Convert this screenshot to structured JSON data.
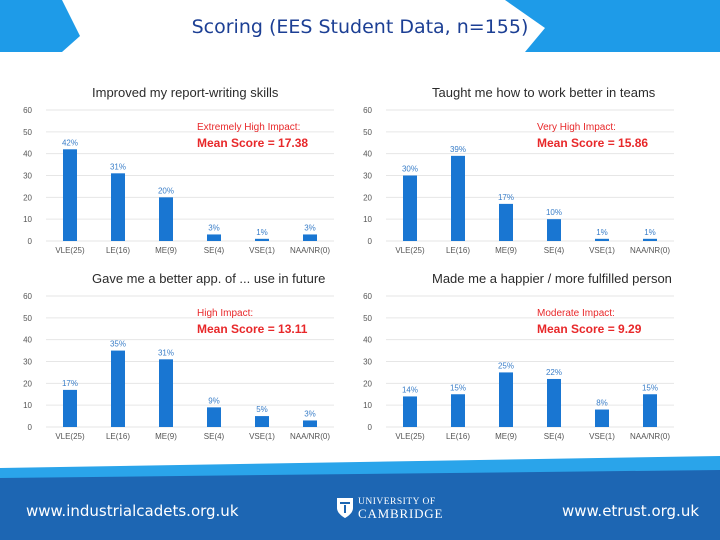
{
  "title": "Scoring (EES Student Data, n=155)",
  "colors": {
    "bar": "#1976d2",
    "impact": "#e8282a",
    "brand": "#1e9be8",
    "footer_blue": "#1d66b3",
    "title": "#1c3f94",
    "label": "#3a7ec8"
  },
  "footer": {
    "left_url": "www.industrialcadets.org.uk",
    "logo_line1": "UNIVERSITY OF",
    "logo_line2": "CAMBRIDGE",
    "right_url": "www.etrust.org.uk"
  },
  "chart_data": [
    {
      "type": "bar",
      "title": "Improved my report-writing skills",
      "categories": [
        "VLE(25)",
        "LE(16)",
        "ME(9)",
        "SE(4)",
        "VSE(1)",
        "NAA/NR(0)"
      ],
      "values": [
        42,
        31,
        20,
        3,
        1,
        3
      ],
      "labels": [
        "42%",
        "31%",
        "20%",
        "3%",
        "1%",
        "3%"
      ],
      "yticks": [
        0,
        10,
        20,
        30,
        40,
        50,
        60
      ],
      "ylim": [
        0,
        60
      ],
      "impact_label": "Extremely High Impact:",
      "mean_score": "Mean Score = 17.38"
    },
    {
      "type": "bar",
      "title": "Taught me how to work better in teams",
      "categories": [
        "VLE(25)",
        "LE(16)",
        "ME(9)",
        "SE(4)",
        "VSE(1)",
        "NAA/NR(0)"
      ],
      "values": [
        30,
        39,
        17,
        10,
        1,
        1
      ],
      "labels": [
        "30%",
        "39%",
        "17%",
        "10%",
        "1%",
        "1%"
      ],
      "yticks": [
        0,
        10,
        20,
        30,
        40,
        50,
        60
      ],
      "ylim": [
        0,
        60
      ],
      "impact_label": "Very High Impact:",
      "mean_score": "Mean Score = 15.86"
    },
    {
      "type": "bar",
      "title": "Gave me a better app. of ... use in future",
      "categories": [
        "VLE(25)",
        "LE(16)",
        "ME(9)",
        "SE(4)",
        "VSE(1)",
        "NAA/NR(0)"
      ],
      "values": [
        17,
        35,
        31,
        9,
        5,
        3
      ],
      "labels": [
        "17%",
        "35%",
        "31%",
        "9%",
        "5%",
        "3%"
      ],
      "yticks": [
        0,
        10,
        20,
        30,
        40,
        50,
        60
      ],
      "ylim": [
        0,
        60
      ],
      "impact_label": "High Impact:",
      "mean_score": "Mean Score = 13.11"
    },
    {
      "type": "bar",
      "title": "Made me a happier / more fulfilled person",
      "categories": [
        "VLE(25)",
        "LE(16)",
        "ME(9)",
        "SE(4)",
        "VSE(1)",
        "NAA/NR(0)"
      ],
      "values": [
        14,
        15,
        25,
        22,
        8,
        15
      ],
      "labels": [
        "14%",
        "15%",
        "25%",
        "22%",
        "8%",
        "15%"
      ],
      "yticks": [
        0,
        10,
        20,
        30,
        40,
        50,
        60
      ],
      "ylim": [
        0,
        60
      ],
      "impact_label": "Moderate Impact:",
      "mean_score": "Mean Score = 9.29"
    }
  ]
}
